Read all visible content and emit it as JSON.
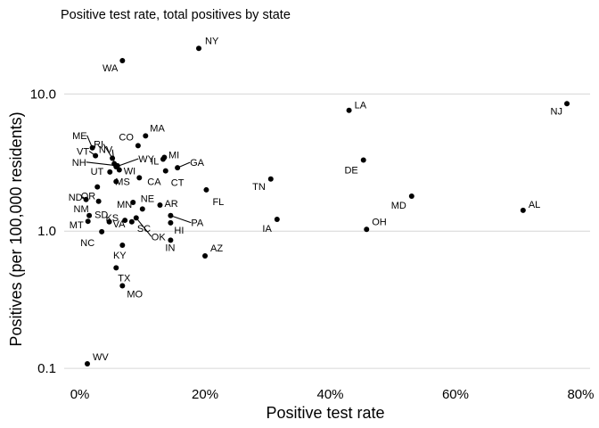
{
  "chart_data": {
    "type": "scatter",
    "title": "Positive test rate, total positives by state",
    "xlabel": "Positive test rate",
    "ylabel": "Positives (per 100,000 residents)",
    "x_scale": "linear",
    "y_scale": "log10",
    "xlim": [
      -0.025,
      0.815
    ],
    "ylim": [
      0.08,
      30
    ],
    "x_ticks": [
      0,
      0.2,
      0.4,
      0.6,
      0.8
    ],
    "x_tick_labels": [
      "0%",
      "20%",
      "40%",
      "60%",
      "80%"
    ],
    "y_ticks": [
      0.1,
      1.0,
      10.0
    ],
    "y_tick_labels": [
      "0.1",
      "1.0",
      "10.0"
    ],
    "grid": "horizontal major lines only",
    "legend": "none",
    "colors": {
      "points": "#000000",
      "grid": "#d6d6d6",
      "background": "#ffffff"
    },
    "points": [
      {
        "label": "NY",
        "x": 0.19,
        "y": 21.5
      },
      {
        "label": "WA",
        "x": 0.068,
        "y": 17.5
      },
      {
        "label": "NJ",
        "x": 0.778,
        "y": 8.5
      },
      {
        "label": "LA",
        "x": 0.43,
        "y": 7.6
      },
      {
        "label": "MA",
        "x": 0.105,
        "y": 4.95
      },
      {
        "label": "CO",
        "x": 0.093,
        "y": 4.2
      },
      {
        "label": "ME",
        "x": 0.02,
        "y": 4.05
      },
      {
        "label": "VT",
        "x": 0.025,
        "y": 3.55
      },
      {
        "label": "RI",
        "x": 0.052,
        "y": 3.4
      },
      {
        "label": "NV",
        "x": 0.055,
        "y": 3.1
      },
      {
        "label": "WY",
        "x": 0.058,
        "y": 2.95
      },
      {
        "label": "NH",
        "x": 0.06,
        "y": 3.0
      },
      {
        "label": "WI",
        "x": 0.063,
        "y": 2.8
      },
      {
        "label": "IL",
        "x": 0.135,
        "y": 3.45
      },
      {
        "label": "MI",
        "x": 0.133,
        "y": 3.35
      },
      {
        "label": "GA",
        "x": 0.156,
        "y": 2.9
      },
      {
        "label": "CT",
        "x": 0.137,
        "y": 2.75
      },
      {
        "label": "DE",
        "x": 0.453,
        "y": 3.3
      },
      {
        "label": "UT",
        "x": 0.048,
        "y": 2.7
      },
      {
        "label": "CA",
        "x": 0.095,
        "y": 2.45
      },
      {
        "label": "MS",
        "x": 0.058,
        "y": 2.3
      },
      {
        "label": "TN",
        "x": 0.305,
        "y": 2.4
      },
      {
        "label": "OR",
        "x": 0.028,
        "y": 2.1
      },
      {
        "label": "ND",
        "x": 0.01,
        "y": 1.7
      },
      {
        "label": "FL",
        "x": 0.202,
        "y": 2.0
      },
      {
        "label": "MD",
        "x": 0.53,
        "y": 1.8
      },
      {
        "label": "AR",
        "x": 0.128,
        "y": 1.55
      },
      {
        "label": "NE",
        "x": 0.1,
        "y": 1.45
      },
      {
        "label": "MN",
        "x": 0.085,
        "y": 1.62
      },
      {
        "label": "NM",
        "x": 0.03,
        "y": 1.65
      },
      {
        "label": "AL",
        "x": 0.708,
        "y": 1.42
      },
      {
        "label": "PA",
        "x": 0.145,
        "y": 1.3
      },
      {
        "label": "SD",
        "x": 0.015,
        "y": 1.3
      },
      {
        "label": "KS",
        "x": 0.072,
        "y": 1.2
      },
      {
        "label": "SC",
        "x": 0.083,
        "y": 1.17
      },
      {
        "label": "MT",
        "x": 0.013,
        "y": 1.18
      },
      {
        "label": "IA",
        "x": 0.315,
        "y": 1.22
      },
      {
        "label": "OK",
        "x": 0.09,
        "y": 1.25
      },
      {
        "label": "HI",
        "x": 0.145,
        "y": 1.15
      },
      {
        "label": "OH",
        "x": 0.458,
        "y": 1.03
      },
      {
        "label": "VA",
        "x": 0.047,
        "y": 1.17
      },
      {
        "label": "NC",
        "x": 0.035,
        "y": 0.99
      },
      {
        "label": "IN",
        "x": 0.145,
        "y": 0.86
      },
      {
        "label": "KY",
        "x": 0.068,
        "y": 0.79
      },
      {
        "label": "AZ",
        "x": 0.2,
        "y": 0.66
      },
      {
        "label": "TX",
        "x": 0.058,
        "y": 0.54
      },
      {
        "label": "MO",
        "x": 0.068,
        "y": 0.4
      },
      {
        "label": "WV",
        "x": 0.012,
        "y": 0.108
      }
    ]
  }
}
